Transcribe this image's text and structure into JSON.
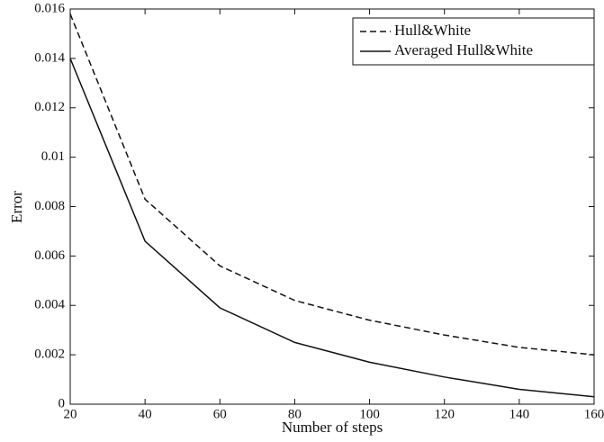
{
  "chart_data": {
    "type": "line",
    "x_label": "Number of steps",
    "y_label": "Error",
    "x": [
      20,
      40,
      60,
      80,
      100,
      120,
      140,
      160
    ],
    "series": [
      {
        "name": "Hull&White",
        "color": "#111111",
        "linestyle": "dashed",
        "values": [
          0.0158,
          0.0083,
          0.0056,
          0.0042,
          0.0034,
          0.0028,
          0.0023,
          0.002
        ]
      },
      {
        "name": "Averaged Hull&White",
        "color": "#111111",
        "linestyle": "solid",
        "values": [
          0.014,
          0.0066,
          0.0039,
          0.0025,
          0.0017,
          0.0011,
          0.0006,
          0.0003
        ]
      }
    ],
    "xlim": [
      20,
      160
    ],
    "xticks": [
      20,
      40,
      60,
      80,
      100,
      120,
      140,
      160
    ],
    "ylim": [
      0,
      0.016
    ],
    "yticks": [
      0,
      0.002,
      0.004,
      0.006,
      0.008,
      0.01,
      0.012,
      0.014,
      0.016
    ],
    "grid": false,
    "legend_position": "upper right"
  }
}
